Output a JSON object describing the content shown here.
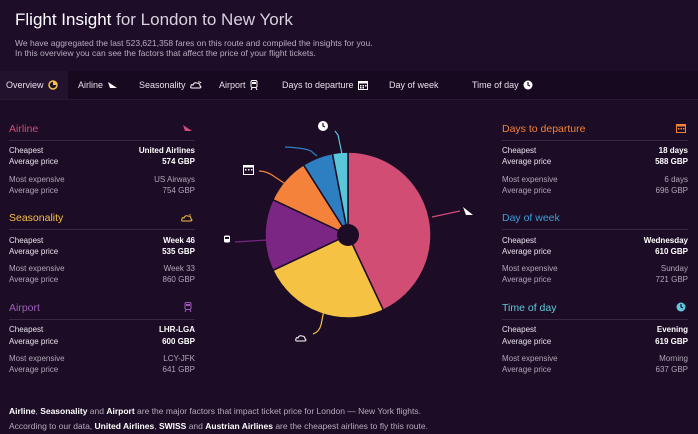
{
  "header": {
    "title_main": "Flight Insight",
    "title_rest": "for London to New York",
    "desc_line1": "We have aggregated the last 523,621,358 fares on this route and compiled the insights for you.",
    "desc_line2": "In this overview you can see the factors that affect the price of your flight tickets."
  },
  "tabs": [
    {
      "label": "Overview",
      "icon": "pie-icon"
    },
    {
      "label": "Airline",
      "icon": "plane-icon"
    },
    {
      "label": "Seasonality",
      "icon": "weather-icon"
    },
    {
      "label": "Airport",
      "icon": "train-icon"
    },
    {
      "label": "Days to departure",
      "icon": "calendar-icon"
    },
    {
      "label": "Day of week",
      "icon": ""
    },
    {
      "label": "Time of day",
      "icon": "clock-icon"
    }
  ],
  "labels": {
    "cheapest": "Cheapest",
    "average_price": "Average price",
    "most_expensive": "Most expensive"
  },
  "cards": {
    "airline": {
      "title": "Airline",
      "cheapest": "United Airlines",
      "cheapest_price": "574 GBP",
      "expensive": "US Airways",
      "expensive_price": "754 GBP"
    },
    "seasonality": {
      "title": "Seasonality",
      "cheapest": "Week 46",
      "cheapest_price": "535 GBP",
      "expensive": "Week 33",
      "expensive_price": "860 GBP"
    },
    "airport": {
      "title": "Airport",
      "cheapest": "LHR-LGA",
      "cheapest_price": "600 GBP",
      "expensive": "LCY-JFK",
      "expensive_price": "641 GBP"
    },
    "days": {
      "title": "Days to departure",
      "cheapest": "18 days",
      "cheapest_price": "588 GBP",
      "expensive": "6 days",
      "expensive_price": "696 GBP"
    },
    "week": {
      "title": "Day of week",
      "cheapest": "Wednesday",
      "cheapest_price": "610 GBP",
      "expensive": "Sunday",
      "expensive_price": "721 GBP"
    },
    "time": {
      "title": "Time of day",
      "cheapest": "Evening",
      "cheapest_price": "619 GBP",
      "expensive": "Morning",
      "expensive_price": "637 GBP"
    }
  },
  "pie": {
    "segments": [
      {
        "name": "Airline",
        "value": 43,
        "color": "#d24d74"
      },
      {
        "name": "Seasonality",
        "value": 25,
        "color": "#f6c244"
      },
      {
        "name": "Airport",
        "value": 14,
        "color": "#7b2584"
      },
      {
        "name": "Days to departure",
        "value": 9,
        "color": "#f5823a"
      },
      {
        "name": "Day of week",
        "value": 6,
        "color": "#2d7fc1"
      },
      {
        "name": "Time of day",
        "value": 3,
        "color": "#5ac6da"
      }
    ]
  },
  "footer": {
    "l1_a": "Airline",
    "l1_b": ", ",
    "l1_c": "Seasonality",
    "l1_d": " and ",
    "l1_e": "Airport",
    "l1_f": " are the major factors that impact ticket price for London — New York flights.",
    "l2_a": "According to our data, ",
    "l2_b": "United Airlines",
    "l2_c": ", ",
    "l2_d": "SWISS",
    "l2_e": " and ",
    "l2_f": "Austrian Airlines",
    "l2_g": " are the cheapest airlines to fly this route."
  },
  "colors": {
    "background": "#1c0c25",
    "airline": "#d24d7b",
    "seasonality": "#f6c244",
    "airport": "#9f5db8",
    "days": "#f5823a",
    "week": "#3a9ed8",
    "time": "#60c8dd"
  }
}
